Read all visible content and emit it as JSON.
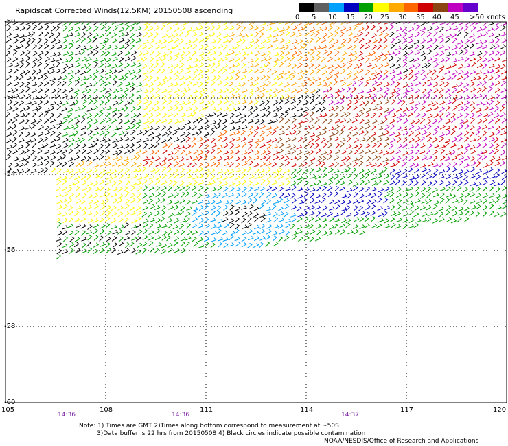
{
  "title": "Rapidscat Corrected Winds(12.5KM) 20150508 ascending",
  "legend": {
    "labels": [
      "0",
      "5",
      "10",
      "15",
      "20",
      "25",
      "30",
      "35",
      "40",
      "45",
      ">50 knots"
    ],
    "colors": [
      "#000000",
      "#606060",
      "#00a0ff",
      "#0000c0",
      "#00a000",
      "#ffff00",
      "#ffaa00",
      "#ff6600",
      "#d00000",
      "#8b4513",
      "#c000c0",
      "#6600cc"
    ]
  },
  "axes": {
    "lat_labels": [
      "-50",
      "-52",
      "-54",
      "-56",
      "-58",
      "-60"
    ],
    "lon_labels": [
      "105",
      "108",
      "111",
      "114",
      "117",
      "120"
    ],
    "lat_range": [
      -60,
      -50
    ],
    "lon_range": [
      105,
      120
    ]
  },
  "time_labels": [
    "14:36",
    "14:36",
    "14:37"
  ],
  "notes": [
    "Note: 1) Times are GMT 2)Times along bottom correspond to measurement at ~50S",
    "3)Data buffer is 22 hrs from 20150508 4) Black circles indicate possible contamination"
  ],
  "credit": "NOAA/NESDIS/Office of Research and Applications"
}
